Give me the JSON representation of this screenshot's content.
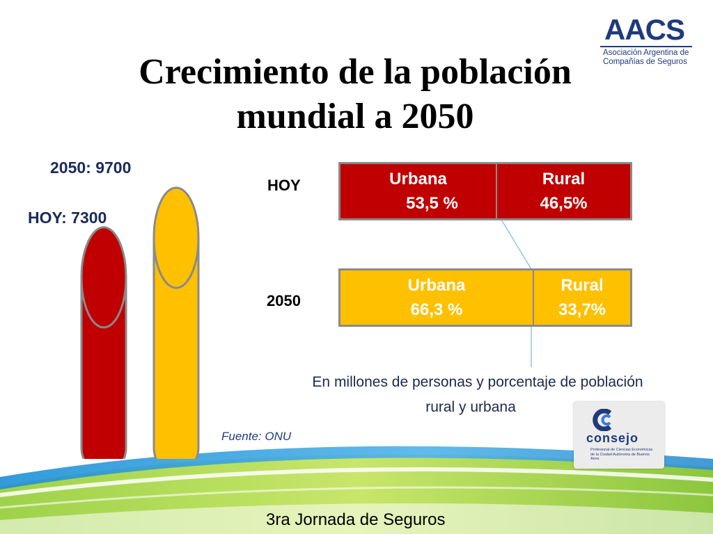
{
  "title": {
    "line1": "Crecimiento de la población",
    "line2": "mundial a 2050"
  },
  "logos": {
    "aacs_letters": "AACS",
    "aacs_line1": "Asociación Argentina de",
    "aacs_line2": "Compañías de Seguros",
    "consejo_word": "consejo",
    "consejo_sub": "Profesional de Ciencias Económicas de la Ciudad Autónoma de Buenos Aires"
  },
  "colors": {
    "today": "#c00000",
    "future": "#ffc000",
    "outline": "#8a8a8a"
  },
  "chart_data": {
    "type": "bar",
    "units": "millions of people",
    "population": [
      {
        "label": "HOY: 7300",
        "value": 7300,
        "period": "HOY"
      },
      {
        "label": "2050: 9700",
        "value": 9700,
        "period": "2050"
      }
    ],
    "split": [
      {
        "period": "HOY",
        "urban_label": "Urbana",
        "urban_value_text": "53,5 %",
        "urban_pct": 53.5,
        "rural_label": "Rural",
        "rural_value_text": "46,5%",
        "rural_pct": 46.5
      },
      {
        "period": "2050",
        "urban_label": "Urbana",
        "urban_value_text": "66,3 %",
        "urban_pct": 66.3,
        "rural_label": "Rural",
        "rural_value_text": "33,7%",
        "rural_pct": 33.7
      }
    ]
  },
  "caption": {
    "line1": "En millones de personas y porcentaje de población",
    "line2": "rural y urbana"
  },
  "source": "Fuente: ONU",
  "footer": "3ra Jornada de Seguros"
}
